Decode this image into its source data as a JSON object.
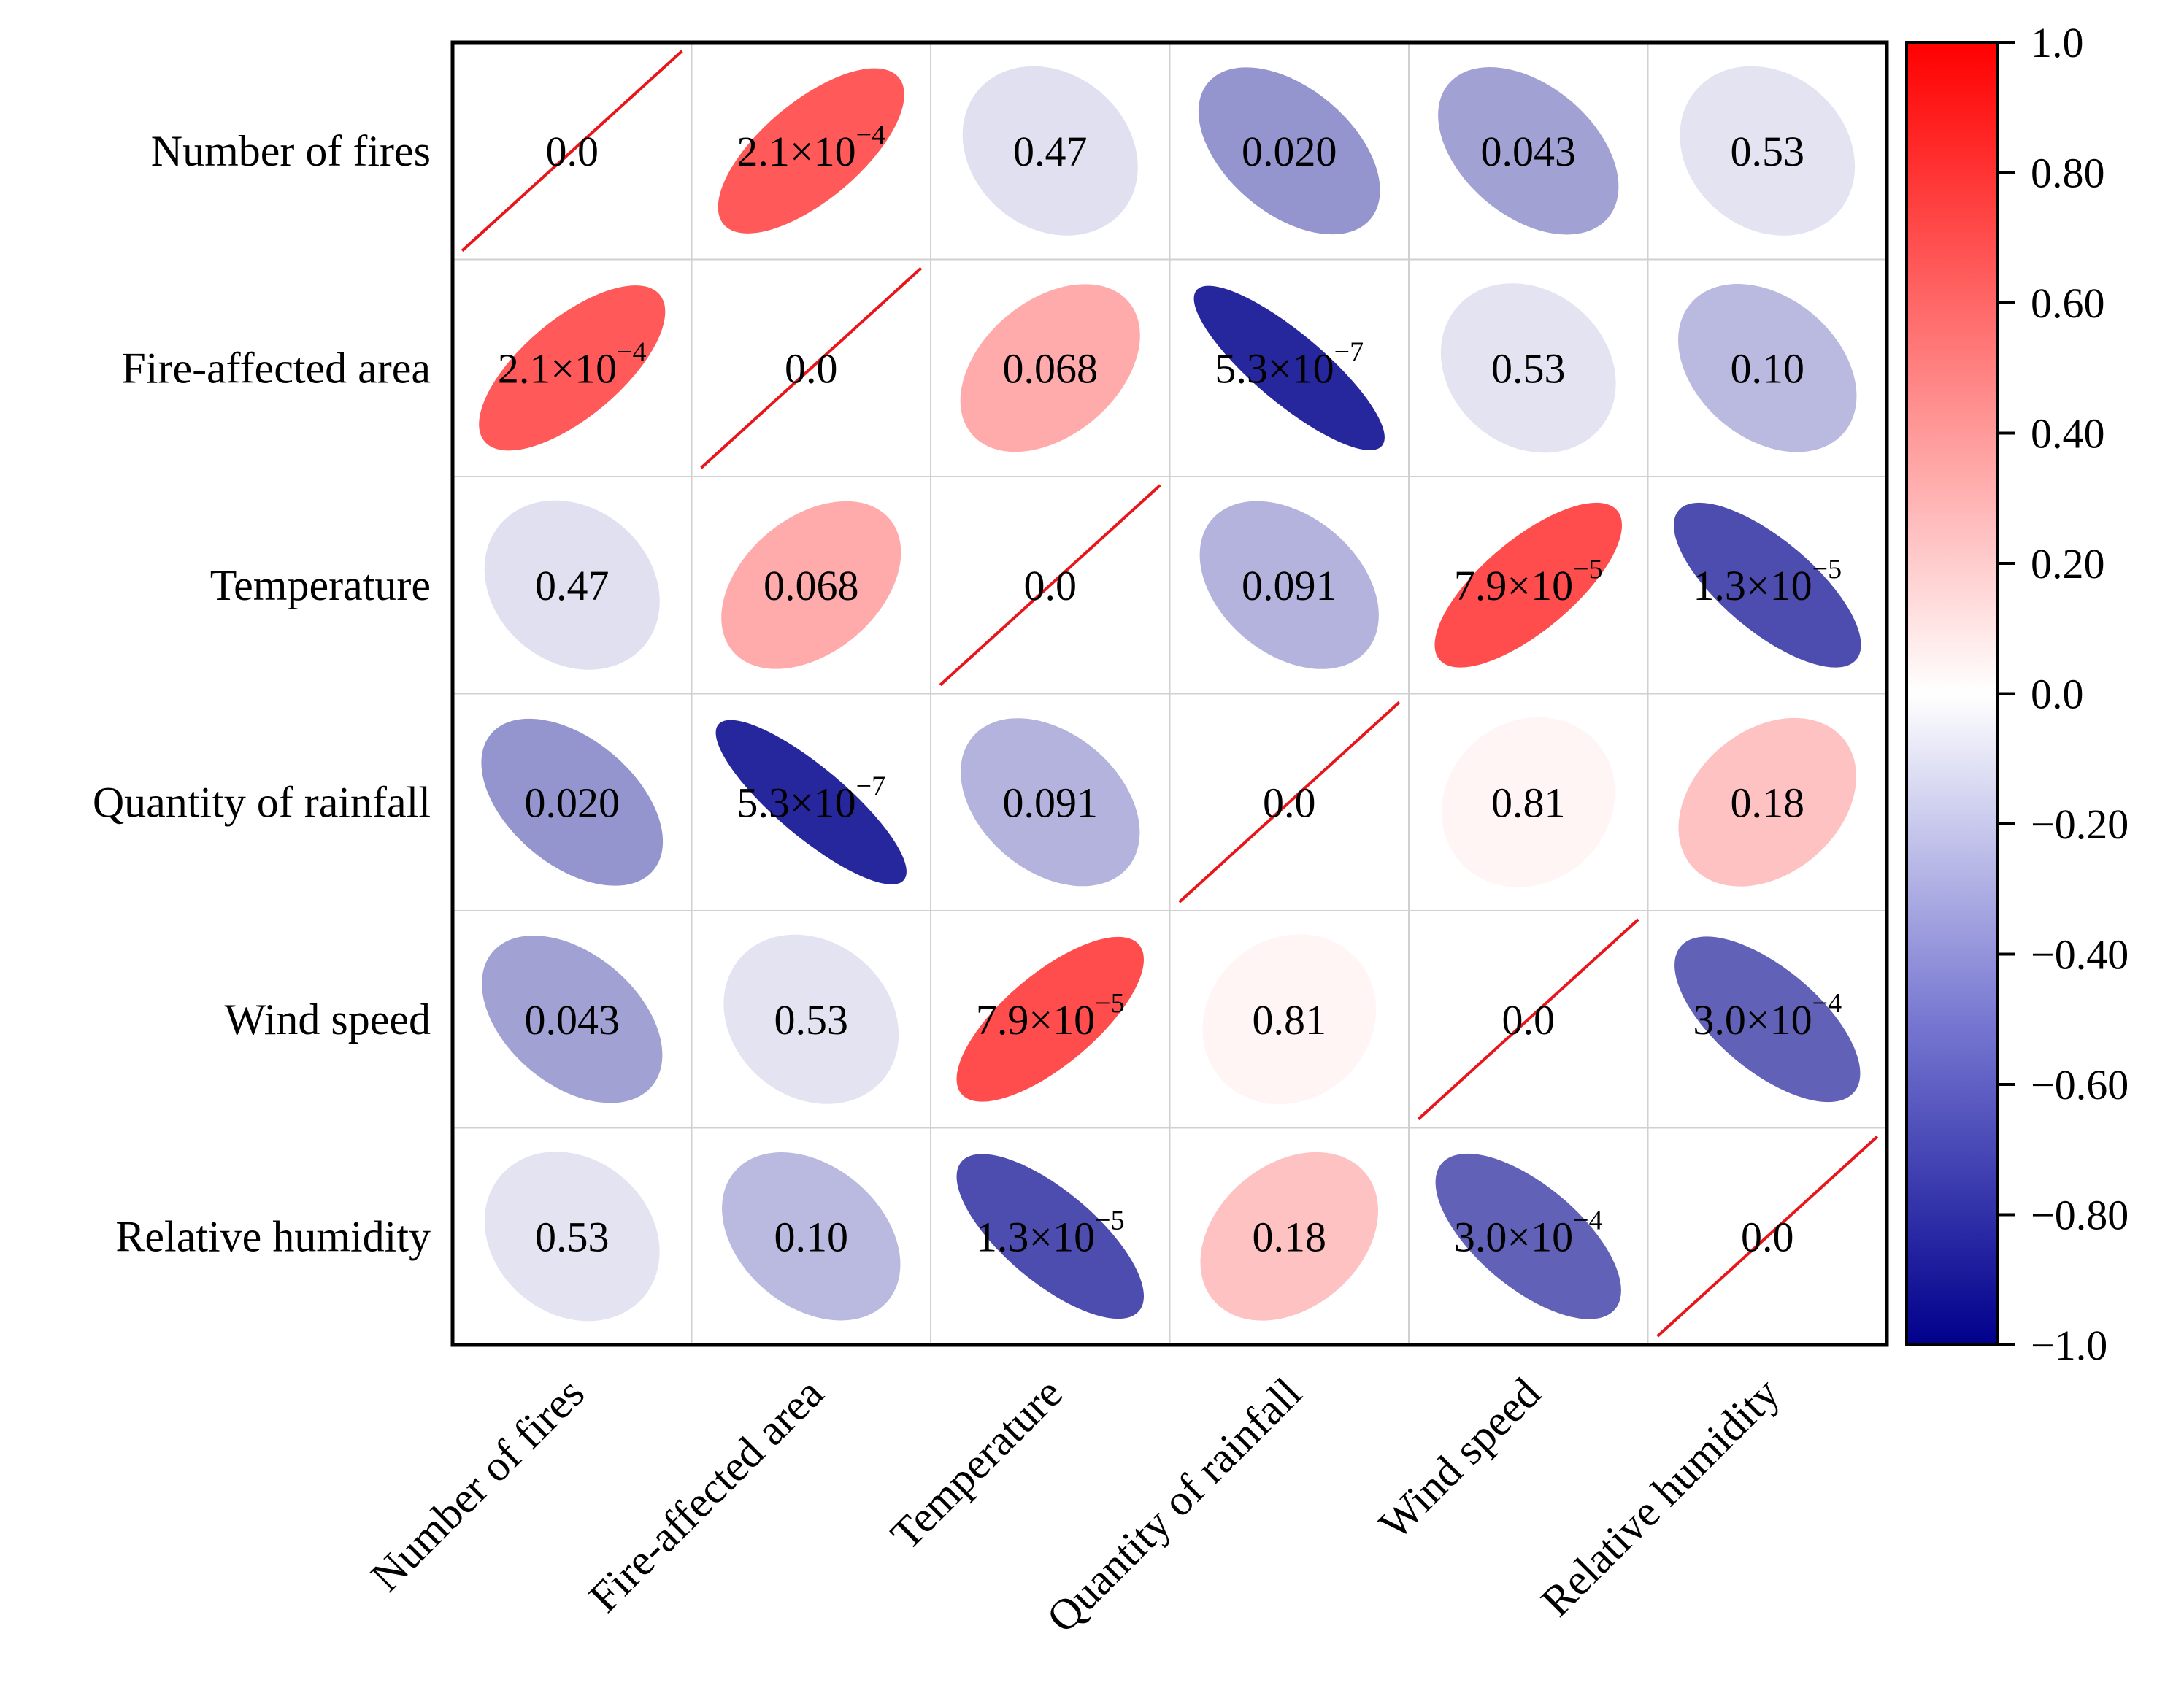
{
  "chart_data": {
    "type": "heatmap",
    "title": "",
    "variables": [
      "Number of fires",
      "Fire-affected area",
      "Temperature",
      "Quantity of rainfall",
      "Wind speed",
      "Relative humidity"
    ],
    "row_labels": [
      "Number of fires",
      "Fire-affected area",
      "Temperature",
      "Quantity of rainfall",
      "Wind speed",
      "Relative humidity"
    ],
    "col_labels": [
      "Number of fires",
      "Fire-affected area",
      "Temperature",
      "Quantity of rainfall",
      "Wind speed",
      "Relative humidity"
    ],
    "correlations": [
      [
        1.0,
        0.65,
        -0.12,
        -0.42,
        -0.37,
        -0.11
      ],
      [
        0.65,
        1.0,
        0.33,
        -0.85,
        -0.11,
        -0.27
      ],
      [
        -0.12,
        0.33,
        1.0,
        -0.3,
        0.7,
        -0.7
      ],
      [
        -0.42,
        -0.85,
        -0.3,
        1.0,
        0.04,
        0.24
      ],
      [
        -0.37,
        -0.11,
        0.7,
        0.04,
        1.0,
        -0.62
      ],
      [
        -0.11,
        -0.27,
        -0.7,
        0.24,
        -0.62,
        1.0
      ]
    ],
    "p_value_labels": [
      [
        {
          "base": "0.0",
          "exp": ""
        },
        {
          "base": "2.1×10",
          "exp": "−4"
        },
        {
          "base": "0.47",
          "exp": ""
        },
        {
          "base": "0.020",
          "exp": ""
        },
        {
          "base": "0.043",
          "exp": ""
        },
        {
          "base": "0.53",
          "exp": ""
        }
      ],
      [
        {
          "base": "2.1×10",
          "exp": "−4"
        },
        {
          "base": "0.0",
          "exp": ""
        },
        {
          "base": "0.068",
          "exp": ""
        },
        {
          "base": "5.3×10",
          "exp": "−7"
        },
        {
          "base": "0.53",
          "exp": ""
        },
        {
          "base": "0.10",
          "exp": ""
        }
      ],
      [
        {
          "base": "0.47",
          "exp": ""
        },
        {
          "base": "0.068",
          "exp": ""
        },
        {
          "base": "0.0",
          "exp": ""
        },
        {
          "base": "0.091",
          "exp": ""
        },
        {
          "base": "7.9×10",
          "exp": "−5"
        },
        {
          "base": "1.3×10",
          "exp": "−5"
        }
      ],
      [
        {
          "base": "0.020",
          "exp": ""
        },
        {
          "base": "5.3×10",
          "exp": "−7"
        },
        {
          "base": "0.091",
          "exp": ""
        },
        {
          "base": "0.0",
          "exp": ""
        },
        {
          "base": "0.81",
          "exp": ""
        },
        {
          "base": "0.18",
          "exp": ""
        }
      ],
      [
        {
          "base": "0.043",
          "exp": ""
        },
        {
          "base": "0.53",
          "exp": ""
        },
        {
          "base": "7.9×10",
          "exp": "−5"
        },
        {
          "base": "0.81",
          "exp": ""
        },
        {
          "base": "0.0",
          "exp": ""
        },
        {
          "base": "3.0×10",
          "exp": "−4"
        }
      ],
      [
        {
          "base": "0.53",
          "exp": ""
        },
        {
          "base": "0.10",
          "exp": ""
        },
        {
          "base": "1.3×10",
          "exp": "−5"
        },
        {
          "base": "0.18",
          "exp": ""
        },
        {
          "base": "3.0×10",
          "exp": "−4"
        },
        {
          "base": "0.0",
          "exp": ""
        }
      ]
    ],
    "colorbar": {
      "range": [
        -1.0,
        1.0
      ],
      "colormap": "seismic",
      "tick_values": [
        1.0,
        0.8,
        0.6,
        0.4,
        0.2,
        0.0,
        -0.2,
        -0.4,
        -0.6,
        -0.8,
        -1.0
      ],
      "tick_labels": [
        "1.0",
        "0.80",
        "0.60",
        "0.40",
        "0.20",
        "0.0",
        "−0.20",
        "−0.40",
        "−0.60",
        "−0.80",
        "−1.0"
      ]
    },
    "colors": {
      "diagonal_line": "#e8161b",
      "grid": "#d0d0d0",
      "frame": "#000000",
      "neg_max": "#00008c",
      "zero": "#ffffff",
      "pos_max": "#ff0000"
    }
  }
}
